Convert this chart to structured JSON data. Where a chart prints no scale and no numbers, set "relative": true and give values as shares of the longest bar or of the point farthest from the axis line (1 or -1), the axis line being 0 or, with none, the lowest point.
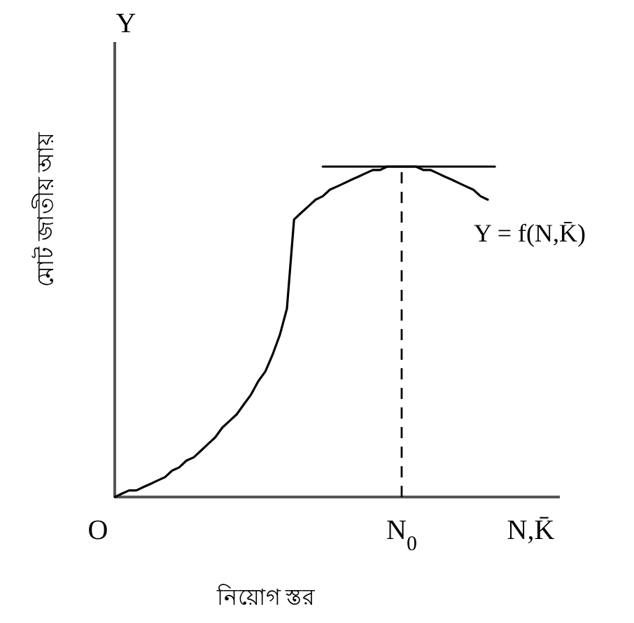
{
  "chart_data": {
    "type": "line",
    "relative": true,
    "xlabel": "নিয়োগ স্তর",
    "ylabel": "মোট জাতীয় আয়",
    "annotations": [
      "Y",
      "O"
    ],
    "categories": [
      null,
      null,
      null,
      null,
      null,
      null,
      null,
      null,
      null,
      null,
      null,
      null,
      null,
      null,
      null,
      null,
      null,
      null,
      null,
      null,
      null,
      null,
      null,
      null,
      null,
      null,
      null,
      null,
      null,
      null,
      null,
      null,
      null,
      null,
      null,
      null,
      null,
      null,
      null,
      null,
      "N$_{0}$",
      null,
      null,
      null,
      null,
      null,
      null,
      null,
      null,
      null,
      null,
      null,
      null,
      null,
      null,
      null,
      null,
      null,
      "N,K̄"
    ],
    "ref_lines": [
      {
        "axis": "x",
        "value": "N$_{0}$",
        "line_style": "dashed",
        "color": "#000000"
      }
    ],
    "series": [
      {
        "name": "Y = f(N,K̄)",
        "color": "#000000",
        "values": [
          0,
          0.01,
          0.02,
          0.02,
          0.03,
          0.04,
          0.05,
          0.06,
          0.08,
          0.09,
          0.11,
          0.12,
          0.14,
          0.16,
          0.18,
          0.21,
          0.23,
          0.25,
          0.28,
          0.31,
          0.35,
          0.38,
          0.43,
          0.49,
          0.57,
          0.84,
          0.86,
          0.88,
          0.9,
          0.91,
          0.93,
          0.94,
          0.95,
          0.96,
          0.97,
          0.98,
          0.99,
          0.99,
          1,
          1,
          1,
          1,
          1,
          0.99,
          0.99,
          0.98,
          0.97,
          0.96,
          0.95,
          0.94,
          0.93,
          0.91,
          0.9,
          null,
          null,
          null,
          null,
          null,
          null
        ]
      },
      {
        "color": "#000000",
        "values": [
          null,
          null,
          null,
          null,
          null,
          null,
          null,
          null,
          null,
          null,
          null,
          null,
          null,
          null,
          null,
          null,
          null,
          null,
          null,
          null,
          null,
          null,
          null,
          null,
          null,
          null,
          null,
          null,
          null,
          1,
          1,
          1,
          1,
          1,
          1,
          1,
          1,
          1,
          1,
          1,
          1,
          1,
          1,
          1,
          1,
          1,
          1,
          1,
          1,
          1,
          1,
          1,
          1,
          1,
          null,
          null,
          null,
          null,
          null
        ]
      }
    ]
  }
}
